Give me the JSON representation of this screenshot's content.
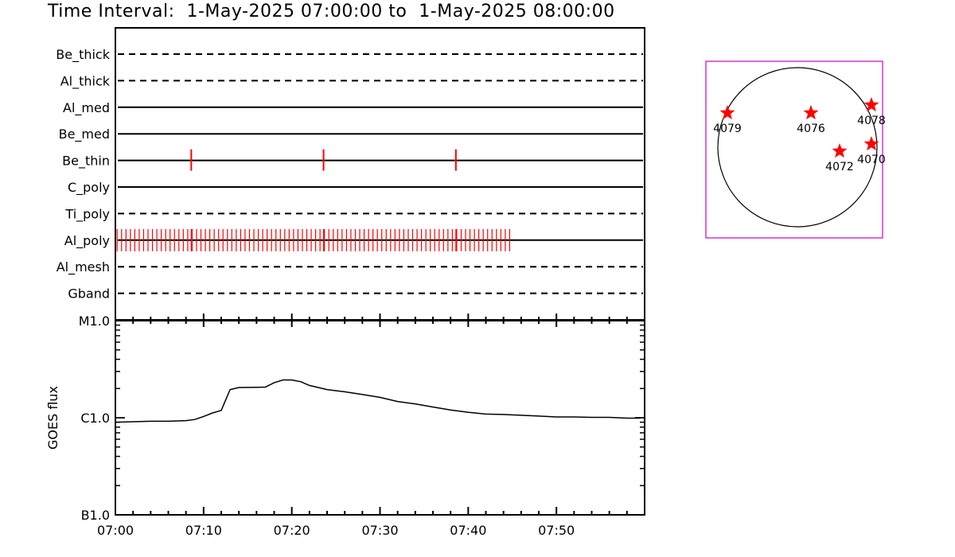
{
  "title": "Time Interval:  1-May-2025 07:00:00 to  1-May-2025 08:00:00",
  "colors": {
    "mark": "#ff0000",
    "axis": "#000000",
    "frame": "#cc00cc"
  },
  "chart_data": [
    {
      "type": "timeline",
      "name": "filter-timeline",
      "x_range": [
        "07:00",
        "08:00"
      ],
      "rows": [
        {
          "label": "Be_thick",
          "style": "dashed",
          "marks": []
        },
        {
          "label": "Al_thick",
          "style": "dashed",
          "marks": []
        },
        {
          "label": "Al_med",
          "style": "solid",
          "marks": []
        },
        {
          "label": "Be_med",
          "style": "solid",
          "marks": []
        },
        {
          "label": "Be_thin",
          "style": "solid",
          "marks": [
            8.6,
            23.6,
            38.6
          ]
        },
        {
          "label": "C_poly",
          "style": "solid",
          "marks": []
        },
        {
          "label": "Ti_poly",
          "style": "dashed",
          "marks": []
        },
        {
          "label": "Al_poly",
          "style": "solid",
          "marks_every_min": 0.5,
          "marks_from": 0.2,
          "marks_to": 44.7,
          "extra_marks": [
            8.6,
            23.6,
            38.6
          ]
        },
        {
          "label": "Al_mesh",
          "style": "dashed",
          "marks": []
        },
        {
          "label": "Gband",
          "style": "dashed",
          "marks": []
        }
      ]
    },
    {
      "type": "line",
      "name": "goes-flux",
      "ylabel": "GOES flux",
      "y_scale": "log",
      "y_ticks": [
        "B1.0",
        "C1.0",
        "M1.0"
      ],
      "y_range": [
        "B1.0",
        "M1.0"
      ],
      "x_ticks": [
        "07:00",
        "07:10",
        "07:20",
        "07:30",
        "07:40",
        "07:50"
      ],
      "x_range_minutes": [
        0,
        60
      ],
      "series": [
        {
          "x_minutes": [
            0,
            2,
            4,
            6,
            8,
            9,
            10,
            11,
            12,
            13,
            14,
            16,
            17,
            18,
            19,
            20,
            21,
            22,
            24,
            26,
            28,
            30,
            32,
            34,
            36,
            38,
            40,
            42,
            44,
            46,
            48,
            50,
            52,
            54,
            56,
            58,
            59.5
          ],
          "y_flux": [
            9e-07,
            9.1e-07,
            9.2e-07,
            9.2e-07,
            9.35e-07,
            9.6e-07,
            1.03e-06,
            1.12e-06,
            1.19e-06,
            1.95e-06,
            2.05e-06,
            2.06e-06,
            2.07e-06,
            2.3e-06,
            2.45e-06,
            2.45e-06,
            2.35e-06,
            2.15e-06,
            1.95e-06,
            1.85e-06,
            1.74e-06,
            1.62e-06,
            1.47e-06,
            1.39e-06,
            1.29e-06,
            1.2e-06,
            1.14e-06,
            1.09e-06,
            1.08e-06,
            1.06e-06,
            1.04e-06,
            1.02e-06,
            1.02e-06,
            1.01e-06,
            1.01e-06,
            9.9e-07,
            9.9e-07
          ]
        }
      ]
    },
    {
      "type": "scatter",
      "name": "solar-disk-map",
      "points": [
        {
          "label": "4079",
          "x": -0.88,
          "y": 0.43
        },
        {
          "label": "4076",
          "x": 0.17,
          "y": 0.43
        },
        {
          "label": "4078",
          "x": 0.93,
          "y": 0.53
        },
        {
          "label": "4072",
          "x": 0.53,
          "y": -0.05
        },
        {
          "label": "4070",
          "x": 0.93,
          "y": 0.04
        }
      ]
    }
  ]
}
